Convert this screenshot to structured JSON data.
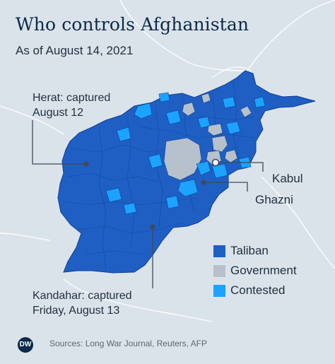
{
  "title": "Who controls Afghanistan",
  "subtitle": "As of August 14, 2021",
  "callouts": {
    "herat": {
      "line1": "Herat: captured",
      "line2": "August 12"
    },
    "kandahar": {
      "line1": "Kandahar: captured",
      "line2": "Friday, August 13"
    },
    "kabul": "Kabul",
    "ghazni": "Ghazni"
  },
  "legend": {
    "items": [
      {
        "label": "Taliban",
        "color": "#1f5fc4"
      },
      {
        "label": "Government",
        "color": "#b7c1cc"
      },
      {
        "label": "Contested",
        "color": "#1ba3ff"
      }
    ]
  },
  "footer": {
    "logo_text": "DW",
    "sources": "Sources: Long War Journal, Reuters, AFP"
  },
  "colors": {
    "background": "#dbe3ea",
    "taliban": "#1f5fc4",
    "government": "#b7c1cc",
    "contested": "#1ba3ff",
    "text": "#1f2f3f",
    "title": "#0b2a4a"
  }
}
